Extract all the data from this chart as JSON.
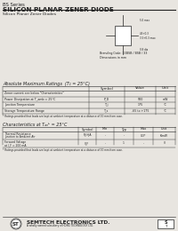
{
  "title_series": "BS Series",
  "title_main": "SILICON PLANAR ZENER DIODE",
  "subtitle": "Silicon Planar Zener Diodes",
  "bg_color": "#e8e5e0",
  "white": "#ffffff",
  "line_color": "#222222",
  "table1_title": "Absolute Maximum Ratings  (T₁ = 25°C)",
  "table1_note": "* Ratings provided that leads are kept at ambient temperature at a distance of 10 mm from case.",
  "table2_title": "Characteristics at Tₐₙᵇ = 25°C",
  "table2_note": "* Ratings provided that leads are kept at ambient temperature at a distance of 10 mm from case.",
  "footer_company": "SEMTECH ELECTRONICS LTD.",
  "footer_sub": "A wholly owned subsidiary of HONG TECHNOLOGY LTD."
}
